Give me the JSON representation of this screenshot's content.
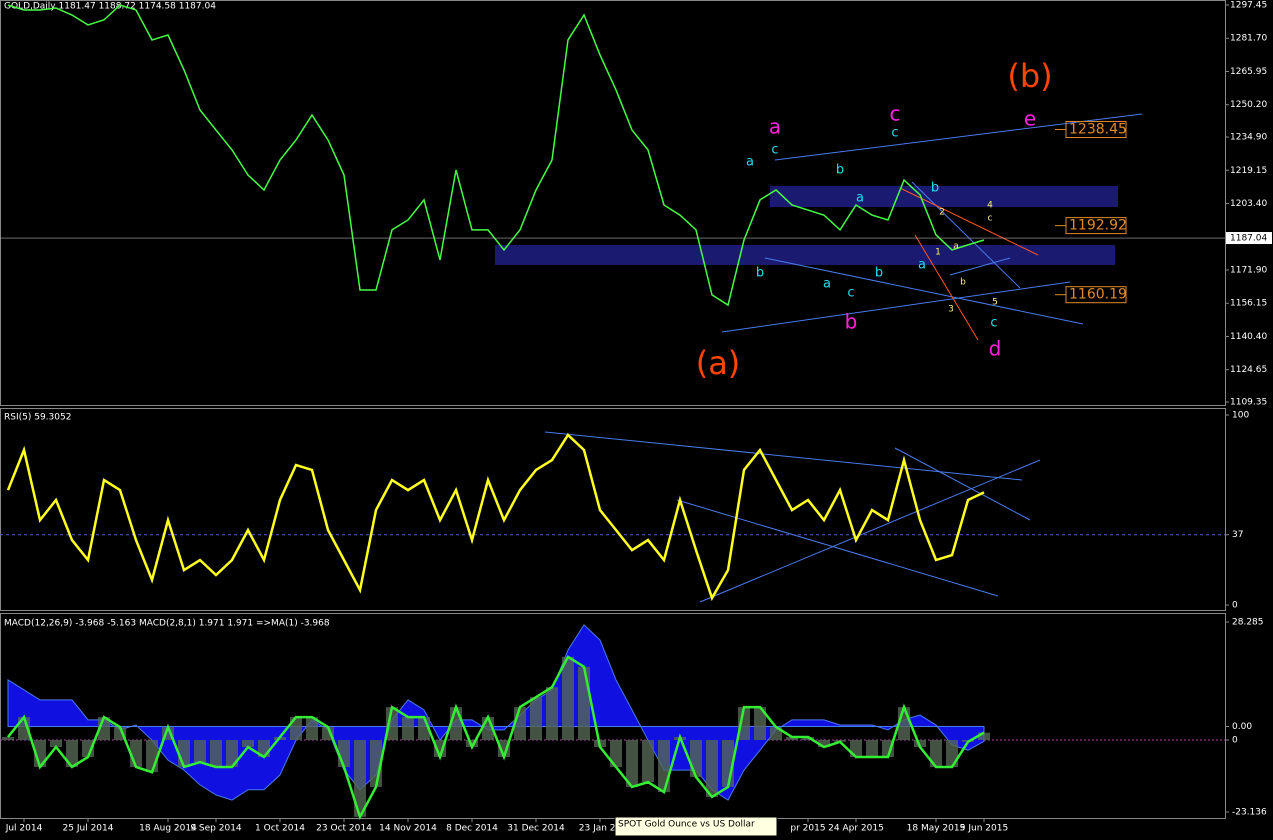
{
  "chart_data": [
    {
      "type": "line",
      "title": "GOLD,Daily  1181.47 1188.72 1174.58 1187.04",
      "color": "#44ff44",
      "categories": [
        null,
        "Jul 2014",
        null,
        null,
        null,
        "25 Jul 2014",
        null,
        null,
        null,
        null,
        "18 Aug 2014",
        null,
        null,
        "9 Sep 2014",
        null,
        null,
        null,
        "1 Oct 2014",
        null,
        null,
        null,
        "23 Oct 2014",
        null,
        null,
        null,
        "14 Nov 2014",
        null,
        null,
        null,
        "8 Dec 2014",
        null,
        null,
        null,
        "31 Dec 2014",
        null,
        null,
        null,
        "23 Jan 20",
        null,
        null,
        null,
        null,
        null,
        null,
        null,
        null,
        null,
        null,
        null,
        null,
        "pr 2015",
        null,
        null,
        "24 Apr 2015",
        null,
        null,
        null,
        null,
        "18 May 2015",
        null,
        null,
        "9 Jun 2015"
      ],
      "values": [
        1297.4,
        1295.1,
        1295.1,
        1296.0,
        1292.7,
        1288.0,
        1290.4,
        1297.4,
        1295.1,
        1280.9,
        1283.2,
        1266.7,
        1247.7,
        1238.2,
        1228.8,
        1216.9,
        1209.8,
        1224.0,
        1233.5,
        1245.3,
        1233.5,
        1216.9,
        1162.4,
        1162.4,
        1190.9,
        1195.6,
        1205.1,
        1176.7,
        1219.3,
        1190.9,
        1190.9,
        1181.4,
        1190.9,
        1209.8,
        1224.0,
        1280.9,
        1292.7,
        1273.8,
        1257.2,
        1238.2,
        1228.8,
        1202.7,
        1197.9,
        1190.9,
        1160.1,
        1155.3,
        1186.1,
        1205.1,
        1209.8,
        1202.7,
        1200.3,
        1197.9,
        1190.9,
        1202.7,
        1197.9,
        1195.6,
        1214.5,
        1207.5,
        1188.5,
        1181.4,
        1183.8,
        1186.1
      ],
      "ylim": [
        1107.93,
        1299.82
      ],
      "yticks": [
        1297.45,
        {
          "value": 1281.7,
          "label": "1281.70"
        },
        1265.95,
        {
          "value": 1250.2,
          "label": "1250.20"
        },
        {
          "value": 1234.9,
          "label": "1234.90"
        },
        1219.15,
        {
          "value": 1203.4,
          "label": "1203.40"
        },
        {
          "value": 1171.9,
          "label": "1171.90"
        },
        1156.15,
        {
          "value": 1140.4,
          "label": "1140.40"
        },
        1124.65,
        1109.35
      ],
      "last_price": 1187.04,
      "price_labels": [
        1238.45,
        1192.92,
        1160.19
      ],
      "annotations": [
        {
          "text": "(b)",
          "color": "#ff4500"
        },
        {
          "text": "(a)",
          "color": "#ff4500"
        },
        {
          "text": "a",
          "color": "#ff22dd"
        },
        {
          "text": "c",
          "color": "#ff22dd"
        },
        {
          "text": "e",
          "color": "#ff22dd"
        },
        {
          "text": "b",
          "color": "#ff22dd"
        },
        {
          "text": "d",
          "color": "#ff22dd"
        },
        {
          "text": "a",
          "color": "#22ddee"
        },
        {
          "text": "c",
          "color": "#22ddee"
        },
        {
          "text": "b",
          "color": "#22ddee"
        },
        {
          "text": "a",
          "color": "#22ddee"
        },
        {
          "text": "c",
          "color": "#22ddee"
        },
        {
          "text": "b",
          "color": "#22ddee"
        },
        {
          "text": "b",
          "color": "#22ddee"
        },
        {
          "text": "a",
          "color": "#22ddee"
        },
        {
          "text": "c",
          "color": "#22ddee"
        },
        {
          "text": "b",
          "color": "#22ddee"
        },
        {
          "text": "a",
          "color": "#22ddee"
        },
        {
          "text": "c",
          "color": "#22ddee"
        },
        {
          "text": "2",
          "color": "#ffee88"
        },
        {
          "text": "4",
          "color": "#ffee88"
        },
        {
          "text": "c",
          "color": "#ffee88"
        },
        {
          "text": "1",
          "color": "#ffee88"
        },
        {
          "text": "a",
          "color": "#ffee88"
        },
        {
          "text": "3",
          "color": "#ffee88"
        },
        {
          "text": "b",
          "color": "#ffee88"
        },
        {
          "text": "5",
          "color": "#ffee88"
        }
      ],
      "tooltip": "SPOT Gold Ounce vs US Dollar"
    },
    {
      "type": "line",
      "title": "RSI(5) 59.3052",
      "color": "#ffff22",
      "values": [
        60.5,
        81.6,
        44.7,
        55.3,
        34.2,
        23.7,
        65.8,
        60.5,
        34.2,
        13.2,
        44.7,
        18.4,
        23.7,
        15.8,
        23.7,
        39.5,
        23.7,
        55.3,
        73.7,
        71.1,
        39.5,
        23.7,
        7.9,
        50.0,
        65.8,
        60.5,
        65.8,
        44.7,
        60.5,
        34.2,
        65.8,
        44.7,
        60.5,
        71.1,
        76.3,
        89.5,
        81.6,
        50.0,
        39.5,
        28.9,
        34.2,
        23.7,
        55.3,
        28.9,
        3.7,
        18.4,
        71.1,
        81.6,
        65.8,
        50.0,
        55.3,
        44.7,
        60.5,
        34.2,
        50.0,
        44.7,
        76.3,
        44.7,
        23.7,
        26.3,
        55.3,
        59.3
      ],
      "ylim": [
        -2.6,
        103.7
      ],
      "yticks": [
        0,
        37,
        100
      ]
    },
    {
      "type": "macd",
      "title": "MACD(12,26,9) -3.968 -5.163  MACD(2,8,1) 1.971 1.971 =>MA(1) -3.968",
      "series": [
        {
          "name": "MACD(12,26,9)",
          "color": "#1010e0",
          "values": [
            12.6,
            9.9,
            7.2,
            7.2,
            7.2,
            1.8,
            1.8,
            -0.9,
            0.4,
            -3.7,
            -9.1,
            -11.8,
            -15.8,
            -18.5,
            -19.9,
            -17.1,
            -17.1,
            -13.1,
            -3.7,
            1.8,
            -0.9,
            -11.8,
            -17.1,
            -13.1,
            1.8,
            7.2,
            4.5,
            -3.7,
            1.8,
            1.8,
            -0.9,
            -0.9,
            3.1,
            7.2,
            9.9,
            20.7,
            27.5,
            23.4,
            12.6,
            4.5,
            -3.7,
            -11.8,
            -11.8,
            -11.8,
            -17.1,
            -19.9,
            -11.8,
            -6.4,
            -0.9,
            1.8,
            1.8,
            1.8,
            0.4,
            0.4,
            0.4,
            -0.9,
            1.8,
            3.1,
            0.4,
            -5.0,
            -6.4,
            -4.0
          ]
        },
        {
          "name": "MACD(2,8,1)",
          "color": "#33ee33",
          "axis": "y2",
          "values": [
            0.8,
            6.2,
            -7.3,
            -1.9,
            -7.3,
            -4.6,
            6.2,
            3.5,
            -7.3,
            -8.7,
            3.5,
            -7.3,
            -6.0,
            -7.3,
            -7.3,
            -1.9,
            -4.6,
            0.8,
            6.2,
            6.2,
            3.5,
            -7.3,
            -20.8,
            -12.7,
            8.9,
            6.2,
            6.2,
            -4.6,
            8.9,
            -1.9,
            6.2,
            -4.6,
            8.9,
            11.6,
            14.3,
            22.5,
            19.8,
            -1.9,
            -7.3,
            -12.7,
            -11.4,
            -14.1,
            0.8,
            -10.0,
            -15.4,
            -12.7,
            8.9,
            8.9,
            3.5,
            0.8,
            0.8,
            -1.9,
            -0.5,
            -4.6,
            -4.6,
            -4.6,
            8.9,
            -1.9,
            -7.3,
            -7.3,
            -0.5,
            2.0
          ]
        }
      ],
      "ylim": [
        -24.76,
        30.72
      ],
      "yticks": [
        28.285,
        {
          "value": 0,
          "label": "0.00"
        },
        -23.136
      ],
      "y2lim": [
        -21.11,
        34.37
      ],
      "y2ticks": [
        0
      ]
    }
  ]
}
